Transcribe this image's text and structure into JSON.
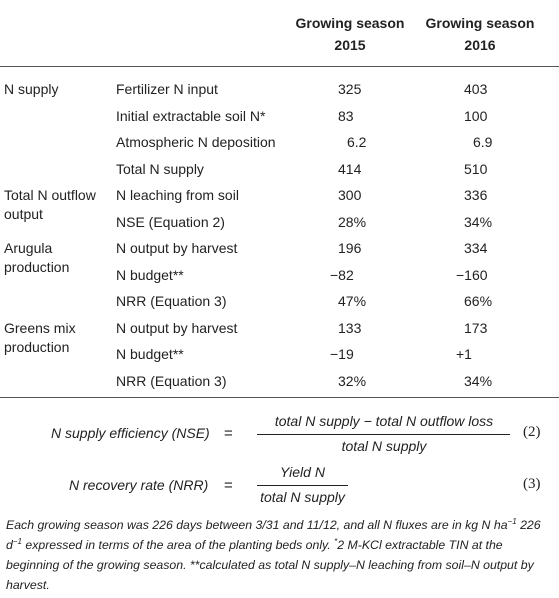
{
  "header": {
    "col_2015_line1": "Growing season",
    "col_2015_line2": "2015",
    "col_2016_line1": "Growing season",
    "col_2016_line2": "2016"
  },
  "rows": [
    {
      "group": "N supply",
      "group2": "",
      "label": "Fertilizer N input",
      "v2015": "325",
      "v2016": "403"
    },
    {
      "group": "",
      "group2": "",
      "label": "Initial extractable soil N*",
      "v2015": "83",
      "v2016": "100"
    },
    {
      "group": "",
      "group2": "",
      "label": "Atmospheric N deposition",
      "v2015": "6.2",
      "v2016": "6.9"
    },
    {
      "group": "",
      "group2": "",
      "label": "Total N supply",
      "v2015": "414",
      "v2016": "510"
    },
    {
      "group": "Total N outflow",
      "group2": "output",
      "label": "N leaching from soil",
      "v2015": "300",
      "v2016": "336"
    },
    {
      "group": "",
      "group2": "",
      "label": "NSE (Equation 2)",
      "v2015": "28%",
      "v2016": "34%"
    },
    {
      "group": "Arugula",
      "group2": "production",
      "label": "N output by harvest",
      "v2015": "196",
      "v2016": "334"
    },
    {
      "group": "",
      "group2": "",
      "label": "N budget**",
      "v2015": "−82",
      "v2016": "−160"
    },
    {
      "group": "",
      "group2": "",
      "label": "NRR (Equation 3)",
      "v2015": "47%",
      "v2016": "66%"
    },
    {
      "group": "Greens mix",
      "group2": "production",
      "label": "N output by harvest",
      "v2015": "133",
      "v2016": "173"
    },
    {
      "group": "",
      "group2": "",
      "label": "N budget**",
      "v2015": "−19",
      "v2016": "+1"
    },
    {
      "group": "",
      "group2": "",
      "label": "NRR (Equation 3)",
      "v2015": "32%",
      "v2016": "34%"
    }
  ],
  "equations": [
    {
      "lhs": "N supply efficiency (NSE)",
      "eq": "=",
      "numerator": "total N supply −  total N outflow loss",
      "denominator": "total N supply",
      "number": "(2)"
    },
    {
      "lhs": "N recovery rate (NRR)",
      "eq": "=",
      "numerator": "Yield N",
      "denominator": "total N supply",
      "number": "(3)"
    }
  ],
  "footnote": {
    "part1": "Each growing season was 226 days between 3/31 and 11/12, and all N fluxes are in kg N ha",
    "sup1": "−1",
    "part2": " 226 d",
    "sup2": "−1",
    "part3": " expressed in terms of the area of the planting beds only. ",
    "sup3": "*",
    "part4": "2 M-KCl extractable TIN at the beginning of the growing season. **calculated as total N supply–N leaching from soil–N output by harvest."
  }
}
